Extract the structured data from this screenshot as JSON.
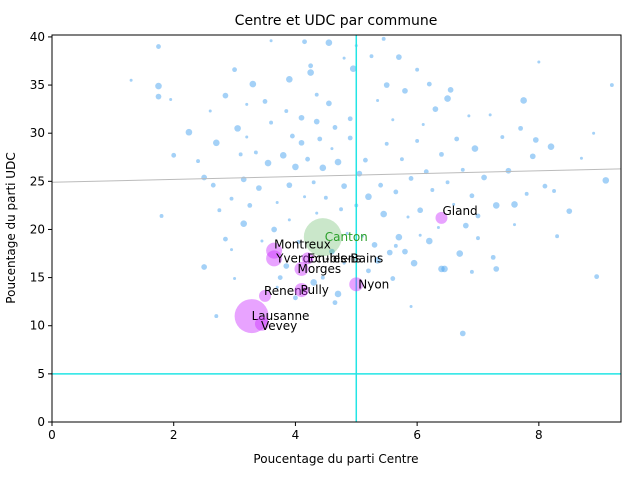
{
  "chart_data": {
    "type": "scatter",
    "title": "Centre et UDC par commune",
    "xlabel": "Poucentage du parti Centre",
    "ylabel": "Poucentage du parti UDC",
    "xlim": [
      0,
      9.35
    ],
    "ylim": [
      0,
      40.2
    ],
    "xticks": [
      0,
      2,
      4,
      6,
      8
    ],
    "yticks": [
      0,
      5,
      10,
      15,
      20,
      25,
      30,
      35,
      40
    ],
    "grid": false,
    "reference_lines": {
      "vertical_x": 5,
      "horizontal_y": 5,
      "color": "#22e5e5"
    },
    "trend_line": {
      "x": [
        0,
        9.35
      ],
      "y": [
        24.9,
        26.3
      ],
      "color": "#bbbbbb"
    },
    "canton": {
      "name": "Canton",
      "x": 4.45,
      "y": 19.2,
      "color": "#2ca02c"
    },
    "communes": [
      {
        "name": "Lausanne",
        "x": 3.28,
        "y": 11.0,
        "size": 17
      },
      {
        "name": "Vevey",
        "x": 3.45,
        "y": 10.2,
        "size": 7
      },
      {
        "name": "Renens",
        "x": 3.5,
        "y": 13.1,
        "size": 6
      },
      {
        "name": "Pully",
        "x": 4.1,
        "y": 13.7,
        "size": 7
      },
      {
        "name": "Morges",
        "x": 4.1,
        "y": 15.9,
        "size": 7
      },
      {
        "name": "Nyon",
        "x": 5.0,
        "y": 14.3,
        "size": 7
      },
      {
        "name": "Montreux",
        "x": 3.65,
        "y": 17.8,
        "size": 8
      },
      {
        "name": "Yverdon-les-Bains",
        "x": 3.65,
        "y": 17.0,
        "size": 8
      },
      {
        "name": "Ecublens",
        "x": 4.2,
        "y": 17.0,
        "size": 6
      },
      {
        "name": "Gland",
        "x": 6.4,
        "y": 21.2,
        "size": 6
      }
    ],
    "small_points": [
      [
        1.3,
        35.5
      ],
      [
        1.75,
        39.0
      ],
      [
        1.75,
        34.9
      ],
      [
        1.8,
        21.4
      ],
      [
        1.75,
        33.8
      ],
      [
        1.95,
        33.5
      ],
      [
        2.0,
        27.7
      ],
      [
        2.25,
        30.1
      ],
      [
        2.4,
        27.1
      ],
      [
        2.5,
        25.4
      ],
      [
        2.6,
        32.3
      ],
      [
        2.65,
        24.6
      ],
      [
        2.7,
        29.0
      ],
      [
        2.75,
        22.0
      ],
      [
        2.85,
        33.9
      ],
      [
        2.95,
        17.9
      ],
      [
        3.0,
        36.6
      ],
      [
        3.05,
        30.5
      ],
      [
        3.1,
        27.8
      ],
      [
        3.15,
        25.2
      ],
      [
        3.2,
        29.6
      ],
      [
        3.25,
        22.5
      ],
      [
        3.3,
        35.1
      ],
      [
        3.35,
        28.0
      ],
      [
        3.4,
        24.3
      ],
      [
        3.45,
        18.8
      ],
      [
        3.5,
        33.3
      ],
      [
        3.55,
        26.9
      ],
      [
        3.6,
        31.1
      ],
      [
        3.65,
        20.0
      ],
      [
        3.7,
        22.8
      ],
      [
        3.75,
        15.0
      ],
      [
        3.8,
        27.7
      ],
      [
        3.85,
        32.3
      ],
      [
        3.9,
        24.6
      ],
      [
        3.9,
        21.0
      ],
      [
        3.95,
        29.7
      ],
      [
        4.0,
        26.5
      ],
      [
        4.05,
        18.7
      ],
      [
        4.1,
        31.6
      ],
      [
        4.15,
        23.4
      ],
      [
        4.2,
        27.3
      ],
      [
        4.25,
        36.3
      ],
      [
        4.3,
        24.9
      ],
      [
        4.35,
        31.2
      ],
      [
        4.35,
        21.7
      ],
      [
        4.4,
        29.4
      ],
      [
        4.45,
        26.4
      ],
      [
        4.5,
        23.3
      ],
      [
        4.55,
        33.1
      ],
      [
        4.6,
        28.4
      ],
      [
        4.65,
        30.6
      ],
      [
        4.7,
        27.0
      ],
      [
        4.75,
        22.1
      ],
      [
        4.8,
        24.5
      ],
      [
        4.85,
        19.6
      ],
      [
        4.9,
        29.5
      ],
      [
        4.95,
        36.7
      ],
      [
        5.0,
        22.5
      ],
      [
        5.05,
        25.8
      ],
      [
        5.1,
        19.3
      ],
      [
        5.15,
        27.2
      ],
      [
        5.2,
        23.4
      ],
      [
        5.25,
        38.0
      ],
      [
        5.3,
        18.4
      ],
      [
        5.35,
        33.4
      ],
      [
        5.4,
        24.6
      ],
      [
        5.45,
        21.6
      ],
      [
        5.5,
        28.9
      ],
      [
        5.55,
        17.6
      ],
      [
        5.6,
        31.4
      ],
      [
        5.65,
        23.9
      ],
      [
        5.7,
        19.2
      ],
      [
        5.75,
        27.3
      ],
      [
        5.8,
        34.4
      ],
      [
        5.85,
        21.3
      ],
      [
        5.9,
        25.3
      ],
      [
        5.95,
        16.5
      ],
      [
        6.0,
        29.2
      ],
      [
        6.05,
        22.0
      ],
      [
        6.1,
        30.9
      ],
      [
        6.15,
        26.0
      ],
      [
        6.2,
        18.8
      ],
      [
        6.25,
        24.1
      ],
      [
        6.3,
        32.5
      ],
      [
        6.35,
        20.2
      ],
      [
        6.4,
        27.8
      ],
      [
        6.45,
        15.9
      ],
      [
        6.5,
        24.9
      ],
      [
        6.55,
        34.5
      ],
      [
        6.6,
        22.6
      ],
      [
        6.65,
        29.4
      ],
      [
        6.7,
        17.5
      ],
      [
        6.75,
        26.2
      ],
      [
        6.8,
        20.4
      ],
      [
        6.85,
        31.8
      ],
      [
        6.9,
        23.5
      ],
      [
        6.95,
        28.4
      ],
      [
        7.0,
        19.1
      ],
      [
        7.1,
        25.4
      ],
      [
        7.2,
        31.9
      ],
      [
        7.25,
        17.1
      ],
      [
        7.3,
        22.5
      ],
      [
        7.4,
        29.6
      ],
      [
        7.5,
        26.1
      ],
      [
        7.6,
        20.5
      ],
      [
        7.7,
        30.5
      ],
      [
        7.75,
        33.4
      ],
      [
        7.8,
        23.7
      ],
      [
        7.9,
        27.6
      ],
      [
        8.0,
        37.4
      ],
      [
        8.1,
        24.5
      ],
      [
        8.2,
        28.6
      ],
      [
        8.3,
        19.3
      ],
      [
        8.5,
        21.9
      ],
      [
        8.7,
        27.4
      ],
      [
        8.95,
        15.1
      ],
      [
        9.1,
        25.1
      ],
      [
        9.2,
        35.0
      ],
      [
        6.75,
        9.2
      ],
      [
        5.9,
        12.0
      ],
      [
        4.65,
        12.4
      ],
      [
        4.7,
        13.3
      ],
      [
        2.7,
        11.0
      ],
      [
        2.5,
        16.1
      ],
      [
        3.0,
        14.9
      ],
      [
        5.6,
        14.9
      ],
      [
        6.4,
        15.9
      ],
      [
        6.9,
        15.6
      ],
      [
        7.3,
        15.9
      ],
      [
        3.6,
        39.6
      ],
      [
        4.15,
        39.5
      ],
      [
        4.55,
        39.4
      ],
      [
        5.45,
        39.8
      ],
      [
        5.7,
        37.9
      ],
      [
        5.0,
        39.1
      ],
      [
        4.9,
        31.5
      ],
      [
        3.9,
        35.6
      ],
      [
        4.35,
        34.0
      ],
      [
        4.1,
        29.0
      ],
      [
        3.2,
        33.0
      ],
      [
        2.85,
        19.0
      ],
      [
        3.15,
        20.6
      ],
      [
        2.95,
        23.2
      ],
      [
        4.6,
        17.7
      ],
      [
        4.8,
        16.5
      ],
      [
        5.2,
        15.7
      ],
      [
        5.35,
        16.8
      ],
      [
        4.45,
        15.0
      ],
      [
        3.85,
        16.2
      ],
      [
        3.7,
        14.0
      ],
      [
        4.0,
        12.9
      ],
      [
        4.3,
        14.5
      ],
      [
        5.65,
        18.3
      ],
      [
        5.8,
        17.7
      ],
      [
        6.05,
        19.4
      ],
      [
        7.0,
        21.4
      ],
      [
        7.6,
        22.6
      ],
      [
        8.25,
        24.0
      ],
      [
        7.95,
        29.3
      ],
      [
        8.9,
        30.0
      ],
      [
        6.2,
        35.1
      ],
      [
        6.5,
        33.6
      ],
      [
        6.0,
        36.6
      ],
      [
        5.5,
        35.0
      ],
      [
        4.8,
        37.8
      ],
      [
        4.25,
        37.0
      ]
    ]
  }
}
